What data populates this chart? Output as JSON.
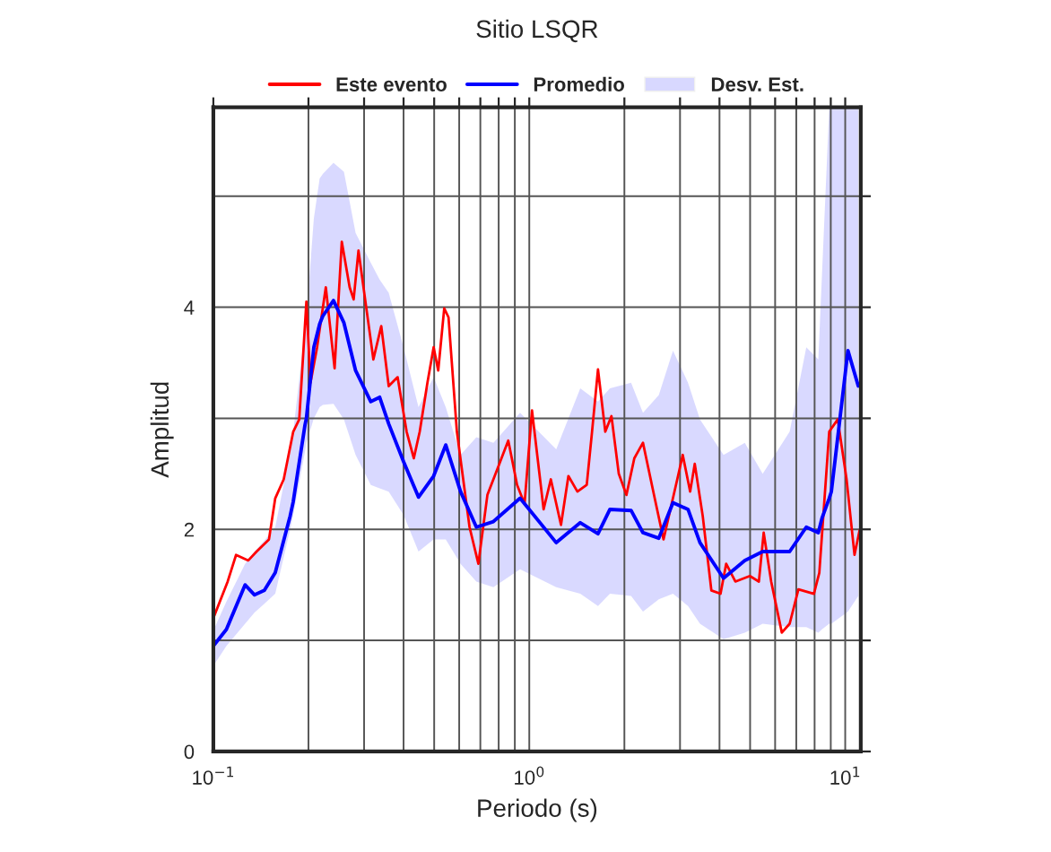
{
  "chart_data": {
    "type": "line",
    "title": "Sitio LSQR",
    "xlabel": "Periodo (s)",
    "ylabel": "Amplitud",
    "log": "x",
    "xlim": [
      0.1,
      11.2
    ],
    "ylim": [
      0,
      5.8
    ],
    "xticks": [
      {
        "value": 0.1,
        "label": "10$^{−1}$"
      },
      {
        "value": 0.2,
        "label": null
      },
      {
        "value": 0.3,
        "label": null
      },
      {
        "value": 0.4,
        "label": null
      },
      {
        "value": 0.5,
        "label": null
      },
      {
        "value": 0.6,
        "label": null
      },
      {
        "value": 0.7,
        "label": null
      },
      {
        "value": 0.8,
        "label": null
      },
      {
        "value": 0.9,
        "label": null
      },
      {
        "value": 1,
        "label": "10$^{0}$"
      },
      {
        "value": 2,
        "label": null
      },
      {
        "value": 3,
        "label": null
      },
      {
        "value": 4,
        "label": null
      },
      {
        "value": 5,
        "label": null
      },
      {
        "value": 6,
        "label": null
      },
      {
        "value": 7,
        "label": null
      },
      {
        "value": 8,
        "label": null
      },
      {
        "value": 9,
        "label": null
      },
      {
        "value": 10,
        "label": "10$^{1}$"
      }
    ],
    "yticks": [
      0,
      {
        "value": 1,
        "label": null
      },
      2,
      {
        "value": 3,
        "label": null
      },
      4,
      {
        "value": 5,
        "label": null
      }
    ],
    "grid": true,
    "legend": "top",
    "annotations": [
      "Desv. Est."
    ],
    "line_style": "solid",
    "series": [
      {
        "name": "Este evento",
        "color": "#ff0000",
        "x": [
          0.1,
          0.111,
          0.118,
          0.129,
          0.137,
          0.15,
          0.157,
          0.167,
          0.179,
          0.187,
          0.197,
          0.203,
          0.213,
          0.227,
          0.242,
          0.255,
          0.27,
          0.278,
          0.288,
          0.304,
          0.321,
          0.34,
          0.359,
          0.383,
          0.409,
          0.431,
          0.45,
          0.476,
          0.498,
          0.515,
          0.538,
          0.555,
          0.59,
          0.647,
          0.69,
          0.737,
          0.804,
          0.858,
          0.915,
          0.966,
          1.02,
          1.11,
          1.17,
          1.26,
          1.33,
          1.42,
          1.52,
          1.58,
          1.65,
          1.74,
          1.82,
          1.92,
          2.03,
          2.15,
          2.29,
          2.49,
          2.66,
          2.94,
          3.06,
          3.23,
          3.34,
          3.54,
          3.77,
          4.03,
          4.2,
          4.49,
          4.99,
          5.33,
          5.52,
          5.83,
          6.3,
          6.67,
          7.11,
          7.96,
          8.28,
          8.9,
          9.47,
          10.1,
          10.7,
          11.1
        ],
        "values": [
          1.2,
          1.53,
          1.77,
          1.72,
          1.8,
          1.91,
          2.28,
          2.45,
          2.88,
          2.99,
          4.05,
          3.32,
          3.64,
          4.18,
          3.45,
          4.59,
          4.18,
          4.07,
          4.51,
          4.02,
          3.53,
          3.83,
          3.29,
          3.37,
          2.88,
          2.64,
          2.88,
          3.32,
          3.64,
          3.43,
          3.99,
          3.91,
          2.88,
          2.02,
          1.69,
          2.31,
          2.59,
          2.8,
          2.4,
          2.23,
          3.07,
          2.18,
          2.45,
          2.04,
          2.48,
          2.34,
          2.4,
          2.88,
          3.44,
          2.88,
          3.02,
          2.5,
          2.31,
          2.64,
          2.78,
          2.29,
          1.91,
          2.45,
          2.67,
          2.34,
          2.59,
          2.12,
          1.45,
          1.42,
          1.69,
          1.53,
          1.58,
          1.53,
          1.97,
          1.53,
          1.07,
          1.15,
          1.46,
          1.42,
          1.61,
          2.88,
          2.99,
          2.45,
          1.77,
          1.99
        ]
      },
      {
        "name": "Promedio",
        "color": "#0000ff",
        "x": [
          0.1,
          0.11,
          0.126,
          0.135,
          0.145,
          0.157,
          0.175,
          0.179,
          0.195,
          0.197,
          0.208,
          0.217,
          0.222,
          0.24,
          0.259,
          0.282,
          0.315,
          0.336,
          0.359,
          0.4,
          0.446,
          0.498,
          0.544,
          0.606,
          0.68,
          0.77,
          0.935,
          1.217,
          1.45,
          1.65,
          1.8,
          2.1,
          2.29,
          2.57,
          2.85,
          3.18,
          3.47,
          4.12,
          4.81,
          5.48,
          6.67,
          7.53,
          8.22,
          8.44,
          8.9,
          9.04,
          10.2,
          11.0
        ],
        "values": [
          0.95,
          1.1,
          1.5,
          1.41,
          1.45,
          1.61,
          2.12,
          2.25,
          2.94,
          3.0,
          3.64,
          3.85,
          3.92,
          4.06,
          3.86,
          3.43,
          3.15,
          3.19,
          2.95,
          2.61,
          2.29,
          2.48,
          2.76,
          2.34,
          2.02,
          2.07,
          2.28,
          1.88,
          2.06,
          1.96,
          2.18,
          2.17,
          1.97,
          1.92,
          2.24,
          2.18,
          1.88,
          1.56,
          1.72,
          1.8,
          1.8,
          2.02,
          1.97,
          2.1,
          2.28,
          2.34,
          3.61,
          3.29
        ],
        "lower": [
          0.77,
          0.95,
          1.15,
          1.25,
          1.33,
          1.42,
          2.0,
          2.13,
          2.7,
          2.78,
          3.0,
          3.1,
          3.12,
          3.13,
          2.99,
          2.67,
          2.4,
          2.37,
          2.34,
          2.13,
          1.8,
          1.91,
          1.91,
          1.69,
          1.53,
          1.48,
          1.64,
          1.48,
          1.42,
          1.31,
          1.42,
          1.4,
          1.26,
          1.37,
          1.42,
          1.31,
          1.15,
          1.01,
          1.07,
          1.15,
          1.12,
          1.12,
          1.07,
          1.1,
          1.15,
          1.15,
          1.26,
          1.4
        ],
        "upper": [
          1.09,
          1.35,
          1.69,
          1.8,
          1.9,
          2.02,
          2.7,
          2.88,
          3.8,
          3.91,
          4.8,
          5.16,
          5.2,
          5.3,
          5.22,
          4.67,
          4.4,
          4.25,
          4.13,
          3.64,
          3.1,
          3.37,
          3.1,
          2.67,
          2.83,
          2.78,
          3.05,
          2.72,
          3.27,
          3.15,
          3.27,
          3.32,
          3.05,
          3.21,
          3.61,
          3.32,
          2.99,
          2.67,
          2.78,
          2.5,
          2.88,
          3.64,
          3.53,
          4.29,
          5.8,
          5.8,
          5.8,
          5.8
        ]
      }
    ]
  }
}
